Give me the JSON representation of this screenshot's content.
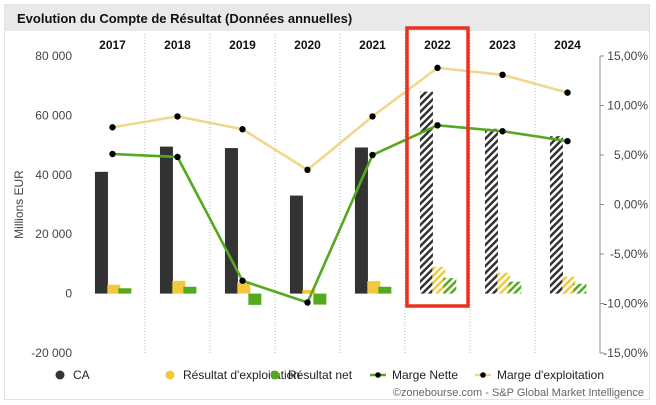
{
  "title": "Evolution du Compte de Résultat (Données annuelles)",
  "credit": "©zonebourse.com - S&P Global Market Intelligence",
  "chart_data": {
    "type": "bar",
    "categories": [
      "2017",
      "2018",
      "2019",
      "2020",
      "2021",
      "2022",
      "2023",
      "2024"
    ],
    "highlighted_category": "2022",
    "estimated_from": "2022",
    "ylabel": "Millions EUR",
    "ylim": [
      -20000,
      80000
    ],
    "yticks": [
      -20000,
      0,
      20000,
      40000,
      60000,
      80000
    ],
    "ytick_labels": [
      "-20 000",
      "0",
      "20 000",
      "40 000",
      "60 000",
      "80 000"
    ],
    "y2lim": [
      -15,
      15
    ],
    "y2ticks": [
      -15,
      -10,
      -5,
      0,
      5,
      10,
      15
    ],
    "y2tick_labels": [
      "-15,00%",
      "-10,00%",
      "-5,00%",
      "0,00%",
      "5,00%",
      "10,00%",
      "15,00%"
    ],
    "bar_series": [
      {
        "name": "CA",
        "color": "#333333",
        "values": [
          41000,
          49500,
          49000,
          33000,
          49200,
          68000,
          55500,
          53000
        ]
      },
      {
        "name": "Résultat d'exploitation",
        "color": "#f2c83c",
        "values": [
          3000,
          4300,
          3700,
          1200,
          4200,
          9000,
          7000,
          5700
        ]
      },
      {
        "name": "Résultat net",
        "color": "#55a91e",
        "values": [
          1800,
          2300,
          -3800,
          -3700,
          2300,
          5200,
          4000,
          3300
        ]
      }
    ],
    "line_series": [
      {
        "name": "Marge Nette",
        "color": "#55a91e",
        "axis": "right",
        "values": [
          5.1,
          4.8,
          -7.7,
          -9.9,
          5.0,
          8.0,
          7.4,
          6.4
        ]
      },
      {
        "name": "Marge d'exploitation",
        "color": "#f0d78c",
        "axis": "right",
        "values": [
          7.8,
          8.9,
          7.6,
          3.5,
          8.9,
          13.8,
          13.1,
          11.3
        ]
      }
    ],
    "grid": false,
    "legend_position": "bottom"
  }
}
